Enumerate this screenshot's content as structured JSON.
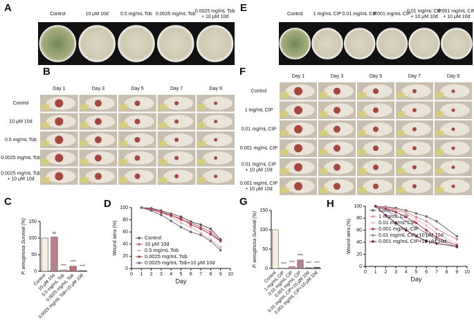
{
  "figure": {
    "A": {
      "letter": "A",
      "labels": [
        [
          "Control"
        ],
        [
          "10 μM 10d"
        ],
        [
          "0.5 mg/mL Tob"
        ],
        [
          "0.0025 mg/mL Tob"
        ],
        [
          "0.0025 mg/mL Tob",
          "+ 10 μM 10d"
        ]
      ]
    },
    "E": {
      "letter": "E",
      "labels": [
        [
          "Control"
        ],
        [
          "1 mg/mL CIP"
        ],
        [
          "0.01 mg/mL CIP"
        ],
        [
          "0.001 mg/mL CIP"
        ],
        [
          "0.01 mg/mL CIP",
          "+ 10 μM 10d"
        ],
        [
          "0.001 mg/mL CIP",
          "+ 10 μM 10d"
        ]
      ]
    },
    "B": {
      "letter": "B",
      "days": [
        "Day 1",
        "Day 3",
        "Day 5",
        "Day 7",
        "Day 9"
      ],
      "rows": [
        [
          "Control"
        ],
        [
          "10 μM 10d"
        ],
        [
          "0.5 mg/mL Tob"
        ],
        [
          "0.0025 mg/mL Tob"
        ],
        [
          "0.0025 mg/mL Tob",
          "+ 10 μM 10d"
        ]
      ]
    },
    "F": {
      "letter": "F",
      "days": [
        "Day 1",
        "Day 3",
        "Day 5",
        "Day 7",
        "Day 9"
      ],
      "rows": [
        [
          "Control"
        ],
        [
          "1 mg/mL CIP"
        ],
        [
          "0.01 mg/mL CIP"
        ],
        [
          "0.001 mg/mL CIP"
        ],
        [
          "0.01 mg/mL CIP",
          "+ 10 μM 10d"
        ],
        [
          "0.001 mg/mL CIP",
          "+ 10 μM 10d"
        ]
      ]
    }
  },
  "chart_data": [
    {
      "type": "bar",
      "letter": "C",
      "y_label": "P. aeruginosa Survival (%)",
      "categories": [
        "Control",
        "10 μM 10d",
        "0.5 mg/mL Tob",
        "0.0025 mg/mL Tob",
        "0.0025 mg/mL Tob+10 μM 10d"
      ],
      "values": [
        100,
        103,
        4,
        15,
        2
      ],
      "colors": [
        "#f3eedd",
        "#b5838f",
        "#e9bcbc",
        "#c26f78",
        "#8f5b6a"
      ],
      "significance": [
        "ns",
        "****",
        "****",
        "****"
      ],
      "ylim": [
        0,
        150
      ],
      "yticks": [
        0,
        50,
        100,
        150
      ]
    },
    {
      "type": "line",
      "letter": "D",
      "y_label": "Wound aera (%)",
      "x_label": "Day",
      "x": [
        1,
        2,
        3,
        4,
        5,
        6,
        7,
        8,
        9
      ],
      "series": [
        {
          "name": "Control",
          "color": "#555555",
          "values": [
            100,
            99,
            95,
            90,
            85,
            77,
            72,
            65,
            48
          ]
        },
        {
          "name": "10 μM 10d",
          "color": "#d0566a",
          "values": [
            100,
            98,
            93,
            88,
            80,
            75,
            68,
            60,
            45
          ]
        },
        {
          "name": "0.5 mg/mL Tob",
          "color": "#eab4b4",
          "values": [
            100,
            97,
            92,
            85,
            75,
            68,
            58,
            48,
            35
          ]
        },
        {
          "name": "0.0025 mg/mL Tob",
          "color": "#a8384e",
          "values": [
            100,
            97,
            92,
            87,
            82,
            72,
            65,
            56,
            45
          ]
        },
        {
          "name": "0.0025 mg/mL Tob+10 μM 10d",
          "color": "#6e6a86",
          "values": [
            100,
            95,
            88,
            78,
            68,
            60,
            55,
            45,
            30
          ]
        }
      ],
      "legend": "lower left",
      "xlim": [
        0,
        10
      ],
      "xticks": [
        0,
        1,
        2,
        3,
        4,
        5,
        6,
        7,
        8,
        9,
        10
      ],
      "ylim": [
        0,
        100
      ],
      "yticks": [
        0,
        20,
        40,
        60,
        80,
        100
      ]
    },
    {
      "type": "bar",
      "letter": "G",
      "y_label": "P. aeruginosa Survival (%)",
      "categories": [
        "Control",
        "1 mg/mL CIP",
        "0.01 mg/mL CIP",
        "0.001 mg/mL CIP",
        "0.01 mg/mL CIP+10 μM 10d",
        "0.001 mg/mL CIP+10 μM 10d"
      ],
      "values": [
        100,
        0.5,
        5,
        22,
        2,
        3
      ],
      "colors": [
        "#f3eedd",
        "#e9bcbc",
        "#d79aa0",
        "#b5838f",
        "#8f5b6a",
        "#6e4a58"
      ],
      "significance": [
        "****",
        "****",
        "****",
        "****",
        "****"
      ],
      "ylim": [
        0,
        150
      ],
      "yticks": [
        0,
        50,
        100,
        150
      ]
    },
    {
      "type": "line",
      "letter": "H",
      "y_label": "Wound aera (%)",
      "x_label": "Day",
      "x": [
        1,
        2,
        3,
        4,
        5,
        6,
        7,
        9
      ],
      "series": [
        {
          "name": "Control",
          "color": "#666666",
          "values": [
            100,
            99,
            97,
            93,
            88,
            83,
            75,
            50
          ]
        },
        {
          "name": "1 mg/mL CIP",
          "color": "#d98a96",
          "values": [
            100,
            98,
            95,
            90,
            82,
            75,
            62,
            45
          ]
        },
        {
          "name": "0.01 mg/mL CIP",
          "color": "#eec3c3",
          "values": [
            100,
            97,
            93,
            88,
            78,
            68,
            55,
            38
          ]
        },
        {
          "name": "0.001 mg/mL CIP",
          "color": "#a8384e",
          "values": [
            100,
            96,
            90,
            82,
            72,
            60,
            48,
            35
          ]
        },
        {
          "name": "0.01 mg/mL CIP+10 μM 10d",
          "color": "#8e8aa3",
          "values": [
            100,
            93,
            85,
            75,
            65,
            55,
            45,
            32
          ]
        },
        {
          "name": "0.001 mg/mL CIP+10 μM 10d",
          "color": "#6a1f3e",
          "values": [
            100,
            85,
            72,
            60,
            50,
            42,
            38,
            33
          ]
        }
      ],
      "legend": "upper left",
      "xlim": [
        0,
        10
      ],
      "xticks": [
        0,
        1,
        2,
        3,
        4,
        5,
        6,
        7,
        8,
        9,
        10
      ],
      "ylim": [
        0,
        100
      ],
      "yticks": [
        0,
        20,
        40,
        60,
        80,
        100
      ]
    }
  ]
}
